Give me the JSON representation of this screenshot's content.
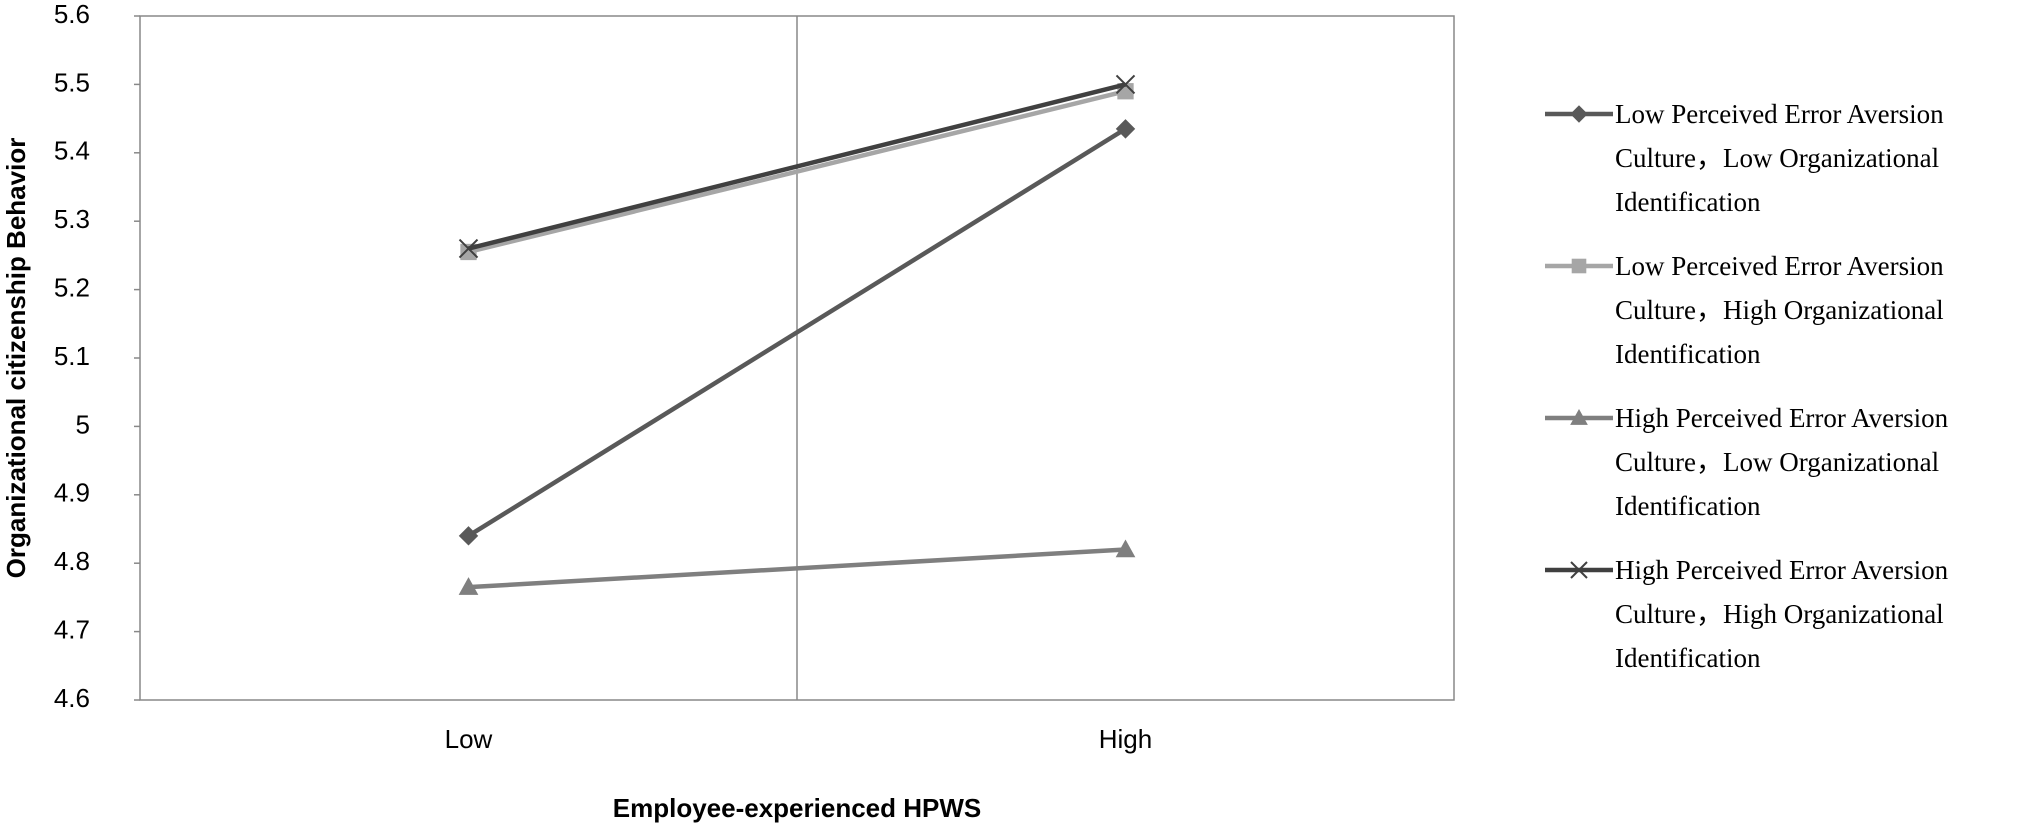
{
  "chart_data": {
    "type": "line",
    "x_label": "Employee-experienced HPWS",
    "y_label": "Organizational citizenship Behavior",
    "categories": [
      "Low",
      "High"
    ],
    "ylim": [
      4.6,
      5.6
    ],
    "yticks": [
      4.6,
      4.7,
      4.8,
      4.9,
      5,
      5.1,
      5.2,
      5.3,
      5.4,
      5.5,
      5.6
    ],
    "legend": "right",
    "series": [
      {
        "name": "Low Perceived Error Aversion Culture，Low Organizational Identification",
        "color": "#595959",
        "marker": "diamond",
        "values": [
          4.84,
          5.435
        ]
      },
      {
        "name": "Low Perceived Error Aversion Culture，High Organizational Identification",
        "color": "#a6a6a6",
        "marker": "square",
        "values": [
          5.255,
          5.49
        ]
      },
      {
        "name": "High Perceived Error Aversion Culture，Low Organizational Identification",
        "color": "#7f7f7f",
        "marker": "triangle",
        "values": [
          4.765,
          4.82
        ]
      },
      {
        "name": "High Perceived Error Aversion Culture，High Organizational Identification",
        "color": "#404040",
        "marker": "x",
        "values": [
          5.26,
          5.5
        ]
      }
    ]
  }
}
